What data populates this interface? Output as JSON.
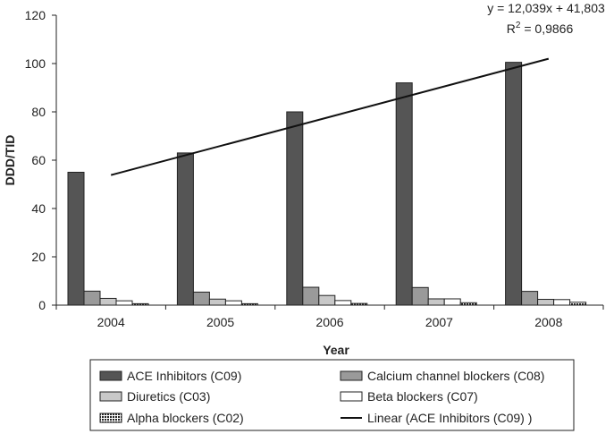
{
  "chart_data": {
    "type": "bar",
    "categories": [
      "2004",
      "2005",
      "2006",
      "2007",
      "2008"
    ],
    "series": [
      {
        "name": "ACE Inhibitors (C09)",
        "values": [
          55,
          63,
          80,
          92,
          100.5
        ],
        "color": "#555555"
      },
      {
        "name": "Calcium channel blockers (C08)",
        "values": [
          5.8,
          5.4,
          7.4,
          7.3,
          5.7
        ],
        "color": "#9a9a9a"
      },
      {
        "name": "Diuretics (C03)",
        "values": [
          2.8,
          2.5,
          4.0,
          2.6,
          2.4
        ],
        "color": "#c8c8c8"
      },
      {
        "name": "Beta blockers (C07)",
        "values": [
          1.8,
          1.8,
          1.9,
          2.6,
          2.3
        ],
        "color": "#ffffff"
      },
      {
        "name": "Alpha blockers (C02)",
        "values": [
          0.6,
          0.6,
          0.7,
          1.0,
          1.2
        ],
        "color": "#333333",
        "pattern": "dots"
      }
    ],
    "trendline": {
      "name": "Linear (ACE Inhibitors (C09) )",
      "slope": 12.039,
      "intercept": 41.803,
      "equation": "y = 12,039x + 41,803",
      "r2_prefix": "R",
      "r2_sup": "2",
      "r2_value": " = 0,9866"
    },
    "xlabel": "Year",
    "ylabel": "DDD/TID",
    "ylim": [
      0,
      120
    ],
    "yticks": [
      0,
      20,
      40,
      60,
      80,
      100,
      120
    ],
    "grid": false,
    "legend_position": "bottom"
  }
}
